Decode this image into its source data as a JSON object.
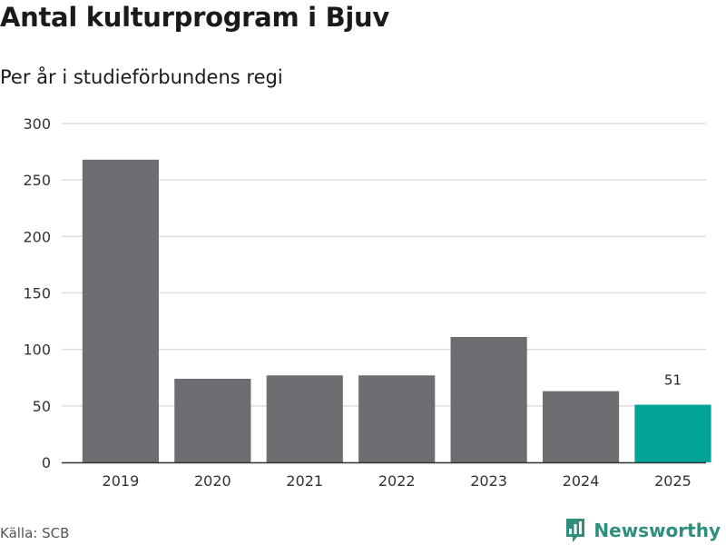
{
  "title": "Antal kulturprogram i Bjuv",
  "subtitle": "Per år i studieförbundens regi",
  "source": "Källa: SCB",
  "brand": "Newsworthy",
  "colors": {
    "bar": "#6e6d72",
    "highlight": "#00a396",
    "grid": "#dddddd",
    "axis": "#333333",
    "brand": "#2f8f7f"
  },
  "chart_data": {
    "type": "bar",
    "title": "Antal kulturprogram i Bjuv",
    "subtitle": "Per år i studieförbundens regi",
    "categories": [
      "2019",
      "2020",
      "2021",
      "2022",
      "2023",
      "2024",
      "2025"
    ],
    "values": [
      268,
      74,
      77,
      77,
      111,
      63,
      51
    ],
    "highlight_index": 6,
    "data_labels": [
      null,
      null,
      null,
      null,
      null,
      null,
      "51"
    ],
    "ylim": [
      0,
      300
    ],
    "yticks": [
      0,
      50,
      100,
      150,
      200,
      250,
      300
    ],
    "ytick_labels": [
      "0",
      "50",
      "100",
      "150",
      "200",
      "250",
      "300"
    ],
    "xlabel": "",
    "ylabel": "",
    "grid": true,
    "legend": false
  }
}
